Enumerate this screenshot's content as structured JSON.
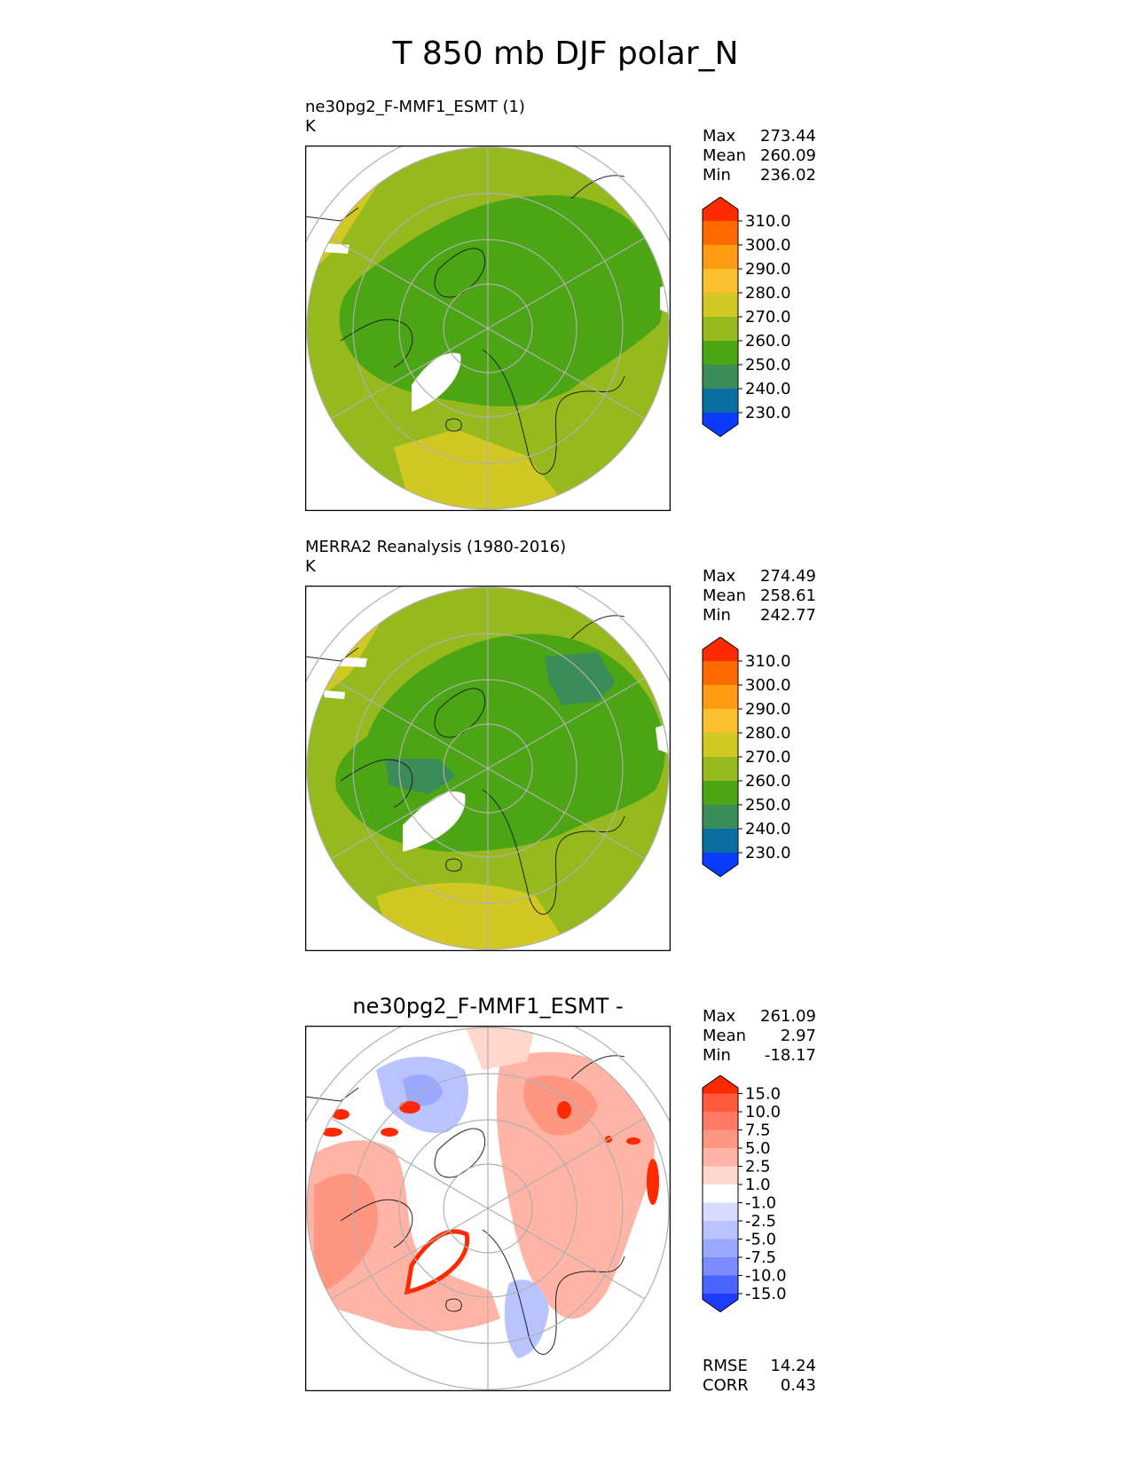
{
  "figure_title": "T 850 mb DJF polar_N",
  "panels": [
    {
      "title": "ne30pg2_F-MMF1_ESMT (1)",
      "units": "K",
      "stats": [
        {
          "label": "Max",
          "value": "273.44"
        },
        {
          "label": "Mean",
          "value": "260.09"
        },
        {
          "label": "Min",
          "value": "236.02"
        }
      ]
    },
    {
      "title": "MERRA2 Reanalysis (1980-2016)",
      "units": "K",
      "stats": [
        {
          "label": "Max",
          "value": "274.49"
        },
        {
          "label": "Mean",
          "value": "258.61"
        },
        {
          "label": "Min",
          "value": "242.77"
        }
      ]
    },
    {
      "title": "ne30pg2_F-MMF1_ESMT -",
      "units": "",
      "stats": [
        {
          "label": "Max",
          "value": "261.09"
        },
        {
          "label": "Mean",
          "value": "2.97"
        },
        {
          "label": "Min",
          "value": "-18.17"
        }
      ],
      "metrics": [
        {
          "label": "RMSE",
          "value": "14.24"
        },
        {
          "label": "CORR",
          "value": "0.43"
        }
      ]
    }
  ],
  "colorbars": {
    "absolute": {
      "ticks": [
        "310.0",
        "300.0",
        "290.0",
        "280.0",
        "270.0",
        "260.0",
        "250.0",
        "240.0",
        "230.0"
      ],
      "colors": [
        "#ff2a00",
        "#ff6a00",
        "#ff9c14",
        "#fbc02d",
        "#d2c823",
        "#96b91e",
        "#4ba514",
        "#3c8c5a",
        "#0a6ea0",
        "#0a3cff"
      ]
    },
    "difference": {
      "ticks": [
        "15.0",
        "10.0",
        "7.5",
        "5.0",
        "2.5",
        "1.0",
        "-1.0",
        "-2.5",
        "-5.0",
        "-7.5",
        "-10.0",
        "-15.0"
      ],
      "colors": [
        "#ff2a00",
        "#ff5a3c",
        "#ff7a64",
        "#ff9682",
        "#ffb4a5",
        "#ffd7cd",
        "#ffffff",
        "#d7dcff",
        "#b9c3ff",
        "#9aa8ff",
        "#7a8cff",
        "#4a64ff",
        "#1e3cff"
      ]
    }
  },
  "chart_data": [
    {
      "type": "heatmap",
      "projection": "north polar stereographic",
      "title": "ne30pg2_F-MMF1_ESMT (1)",
      "units": "K",
      "max": 273.44,
      "mean": 260.09,
      "min": 236.02,
      "levels": [
        230,
        240,
        250,
        260,
        270,
        280,
        290,
        300,
        310
      ]
    },
    {
      "type": "heatmap",
      "projection": "north polar stereographic",
      "title": "MERRA2 Reanalysis (1980-2016)",
      "units": "K",
      "max": 274.49,
      "mean": 258.61,
      "min": 242.77,
      "levels": [
        230,
        240,
        250,
        260,
        270,
        280,
        290,
        300,
        310
      ]
    },
    {
      "type": "heatmap",
      "projection": "north polar stereographic",
      "title": "ne30pg2_F-MMF1_ESMT -",
      "max": 261.09,
      "mean": 2.97,
      "min": -18.17,
      "rmse": 14.24,
      "corr": 0.43,
      "levels": [
        -15,
        -10,
        -7.5,
        -5,
        -2.5,
        -1,
        1,
        2.5,
        5,
        7.5,
        10,
        15
      ]
    }
  ]
}
